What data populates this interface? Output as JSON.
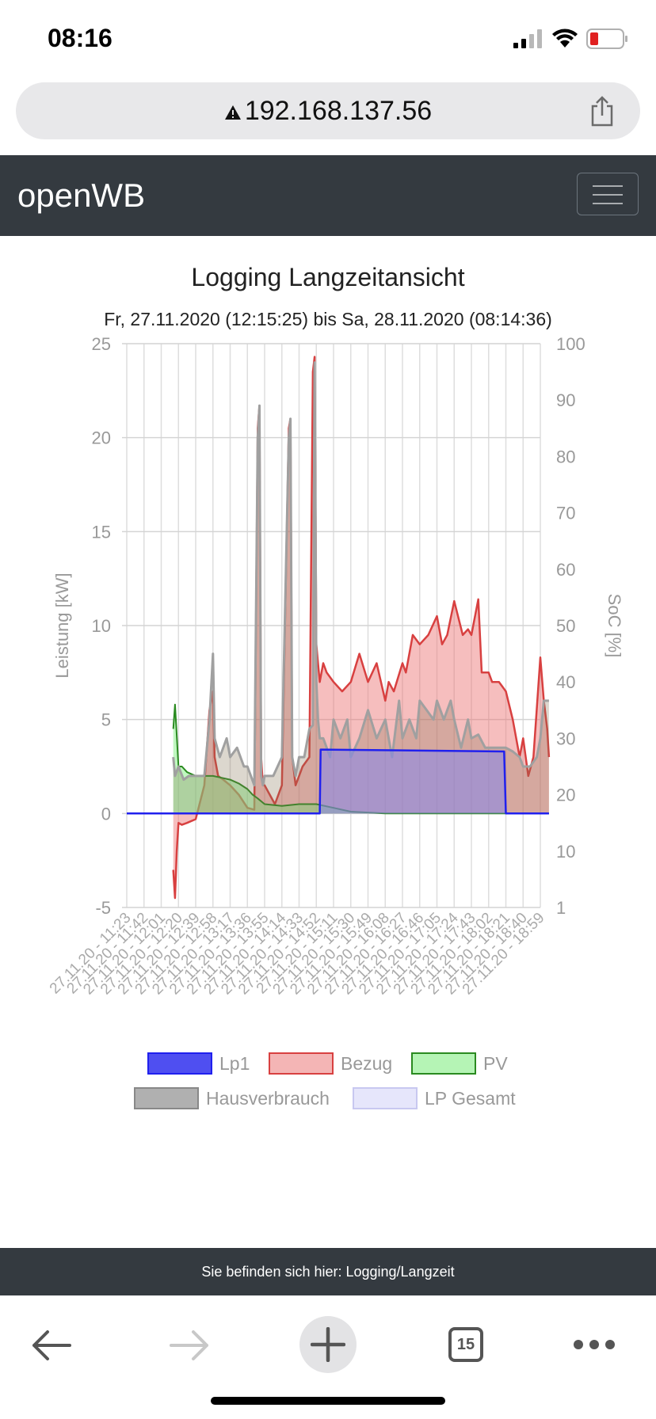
{
  "status_bar": {
    "time": "08:16"
  },
  "browser": {
    "url": "192.168.137.56",
    "tab_count": "15"
  },
  "navbar": {
    "brand": "openWB"
  },
  "chart_data": {
    "type": "area",
    "title": "Logging Langzeitansicht",
    "subtitle": "Fr, 27.11.2020 (12:15:25) bis Sa, 28.11.2020 (08:14:36)",
    "ylabel_left": "Leistung [kW]",
    "ylabel_right": "SoC [%]",
    "ylim_left": [
      -5,
      25
    ],
    "yticks_left": [
      "25",
      "20",
      "15",
      "10",
      "5",
      "0",
      "-5"
    ],
    "yticks_right": [
      "100",
      "90",
      "80",
      "70",
      "60",
      "50",
      "40",
      "30",
      "20",
      "10",
      "1"
    ],
    "grid": true,
    "legend_position": "bottom",
    "x_tick_labels": [
      "27.11.20 - 11:23",
      "27.11.20 - 11:42",
      "27.11.20 - 12:01",
      "27.11.20 - 12:20",
      "27.11.20 - 12:39",
      "27.11.20 - 12:58",
      "27.11.20 - 13:17",
      "27.11.20 - 13:36",
      "27.11.20 - 13:55",
      "27.11.20 - 14:14",
      "27.11.20 - 14:33",
      "27.11.20 - 14:52",
      "27.11.20 - 15:11",
      "27.11.20 - 15:30",
      "27.11.20 - 15:49",
      "27.11.20 - 16:08",
      "27.11.20 - 16:27",
      "27.11.20 - 16:46",
      "27.11.20 - 17:05",
      "27.11.20 - 17:24",
      "27.11.20 - 17:43",
      "27.11.20 - 18:02",
      "27.11.20 - 18:21",
      "27.11.20 - 18:40",
      "27.11.20 - 18:59"
    ],
    "series": [
      {
        "name": "Lp1",
        "color": "#2020ff",
        "x": [
          0,
          3.2,
          3.3,
          11.2,
          11.25,
          21.9,
          22.0,
          24.5
        ],
        "values": [
          0,
          0,
          0,
          0,
          3.4,
          3.3,
          0,
          0
        ]
      },
      {
        "name": "Bezug",
        "color": "#e05050",
        "x": [
          2.7,
          2.8,
          2.9,
          3.0,
          3.2,
          3.5,
          4.0,
          4.5,
          4.8,
          5.0,
          5.1,
          5.3,
          5.6,
          6.0,
          6.5,
          7.0,
          7.4,
          7.6,
          7.7,
          7.8,
          7.9,
          8.0,
          8.3,
          8.6,
          9.0,
          9.4,
          9.5,
          9.6,
          9.8,
          10.0,
          10.2,
          10.6,
          10.8,
          10.9,
          11.0,
          11.1,
          11.2,
          11.3,
          11.4,
          11.6,
          12.0,
          12.5,
          13.0,
          13.5,
          14.0,
          14.5,
          15.0,
          15.2,
          15.5,
          16.0,
          16.2,
          16.6,
          17.0,
          17.5,
          18.0,
          18.3,
          18.6,
          19.0,
          19.5,
          19.8,
          20.0,
          20.4,
          20.6,
          21.0,
          21.2,
          21.6,
          22.0,
          22.4,
          22.8,
          23.0,
          23.3,
          23.6,
          24.0,
          24.2,
          24.4,
          24.5
        ],
        "values": [
          -3,
          -4.5,
          -2,
          -0.5,
          -0.6,
          -0.5,
          -0.3,
          1.5,
          5.5,
          6.5,
          3,
          2,
          1.8,
          1.5,
          1,
          0.3,
          0.2,
          20.5,
          21.7,
          3,
          1.5,
          1.5,
          1,
          0.5,
          1.5,
          20.5,
          21,
          3,
          1.5,
          2,
          2.5,
          3,
          23.5,
          24.3,
          9,
          8,
          7,
          7.5,
          8,
          7.5,
          7,
          6.5,
          7,
          8.5,
          7,
          8,
          6,
          7,
          6.5,
          8,
          7.5,
          9.5,
          9,
          9.5,
          10.5,
          9,
          9.5,
          11.3,
          9.5,
          9.8,
          9.5,
          11.4,
          7.5,
          7.5,
          7,
          7,
          6.5,
          5,
          3,
          4,
          2,
          3,
          8.3,
          6,
          4.5,
          3
        ]
      },
      {
        "name": "PV",
        "color": "#8af08a",
        "x": [
          2.7,
          2.8,
          3.0,
          3.2,
          3.5,
          4.0,
          4.5,
          5.0,
          5.5,
          6.0,
          6.5,
          7.0,
          7.3,
          7.6,
          8.0,
          9.0,
          10.0,
          11.0,
          12.0,
          13.0,
          14.0,
          15.0,
          16.0,
          20.0,
          24.5
        ],
        "values": [
          4.5,
          5.8,
          2.5,
          2.5,
          2.2,
          2,
          2,
          2,
          1.9,
          1.8,
          1.6,
          1.3,
          1,
          0.8,
          0.5,
          0.4,
          0.5,
          0.5,
          0.3,
          0.1,
          0.05,
          0,
          0,
          0,
          0
        ]
      },
      {
        "name": "Hausverbrauch",
        "color": "#9a9a9a",
        "x": [
          2.7,
          2.8,
          3.0,
          3.3,
          3.6,
          4.0,
          4.5,
          4.8,
          5.0,
          5.1,
          5.4,
          5.8,
          6.0,
          6.4,
          6.8,
          7.0,
          7.4,
          7.6,
          7.7,
          7.8,
          7.9,
          8.0,
          8.5,
          9.0,
          9.4,
          9.5,
          9.6,
          9.8,
          10.0,
          10.3,
          10.6,
          10.8,
          10.9,
          11.0,
          11.1,
          11.2,
          11.4,
          11.8,
          12.0,
          12.4,
          12.8,
          13.0,
          13.5,
          14.0,
          14.5,
          15.0,
          15.4,
          15.8,
          16.0,
          16.4,
          16.8,
          17.0,
          17.4,
          17.8,
          18.0,
          18.4,
          18.8,
          19.0,
          19.4,
          19.8,
          20.0,
          20.4,
          20.8,
          21.2,
          21.6,
          22.0,
          22.4,
          22.8,
          23.0,
          23.4,
          23.8,
          24.0,
          24.2,
          24.5
        ],
        "values": [
          3,
          2,
          2.5,
          1.8,
          2,
          2,
          2,
          5,
          8.5,
          4,
          3,
          4,
          3,
          3.5,
          2.5,
          2.5,
          1.5,
          20,
          21.7,
          2,
          1.5,
          2,
          2,
          3,
          20,
          21,
          3,
          2,
          3,
          3,
          4.5,
          4.7,
          24,
          7,
          5,
          4,
          4,
          3,
          5,
          4,
          5,
          3,
          4,
          5.5,
          4,
          5,
          3,
          6,
          4,
          5,
          4,
          6,
          5.5,
          5,
          6,
          5,
          6,
          5,
          3.5,
          5,
          4,
          4.2,
          3.5,
          3.5,
          3.5,
          3.5,
          3.3,
          3,
          2.5,
          2.5,
          3,
          4,
          6,
          6
        ]
      },
      {
        "name": "LP Gesamt",
        "color": "#d0d0f8",
        "x": [
          11.2,
          11.25,
          21.9,
          22.0
        ],
        "values": [
          0,
          3.4,
          3.3,
          0
        ]
      }
    ]
  },
  "footer": {
    "breadcrumb": "Sie befinden sich hier: Logging/Langzeit"
  }
}
